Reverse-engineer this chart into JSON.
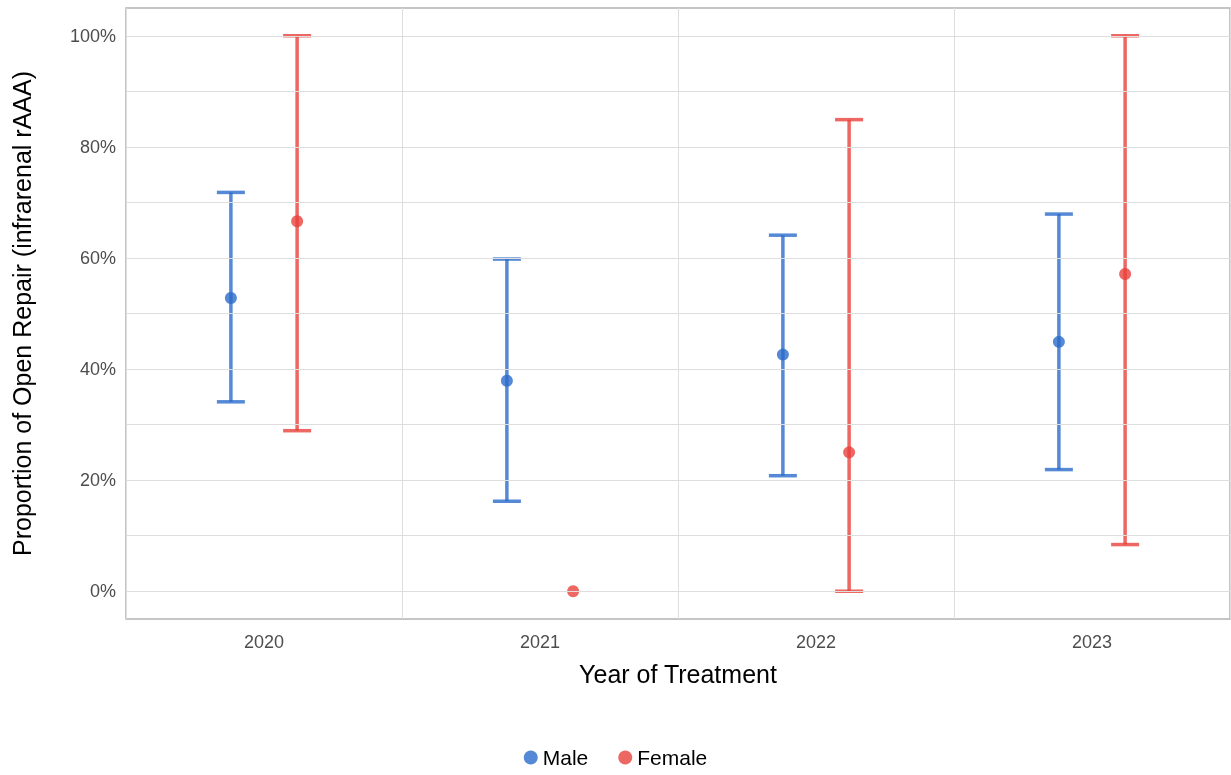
{
  "chart_data": {
    "type": "scatter",
    "xlabel": "Year of Treatment",
    "ylabel": "Proportion of Open Repair (infrarenal rAAA)",
    "categories": [
      "2020",
      "2021",
      "2022",
      "2023"
    ],
    "series": [
      {
        "name": "Male",
        "color": "#2a6ccb",
        "values": [
          52.8,
          37.9,
          42.6,
          44.9
        ],
        "errors": [
          [
            34.1,
            71.8
          ],
          [
            16.2,
            59.8
          ],
          [
            20.8,
            64.1
          ],
          [
            21.9,
            67.9
          ]
        ]
      },
      {
        "name": "Female",
        "color": "#e8413c",
        "values": [
          66.6,
          0,
          25.0,
          57.1
        ],
        "errors": [
          [
            28.9,
            100
          ],
          null,
          [
            0,
            84.9
          ],
          [
            8.4,
            100
          ]
        ]
      }
    ],
    "ylim": [
      -5,
      105
    ],
    "yticks": [
      {
        "value": 0,
        "label": "0%"
      },
      {
        "value": 20,
        "label": "20%"
      },
      {
        "value": 40,
        "label": "40%"
      },
      {
        "value": 60,
        "label": "60%"
      },
      {
        "value": 80,
        "label": "80%"
      },
      {
        "value": 100,
        "label": "100%"
      }
    ],
    "grid": true,
    "legend": "bottom",
    "marker": "circle"
  }
}
